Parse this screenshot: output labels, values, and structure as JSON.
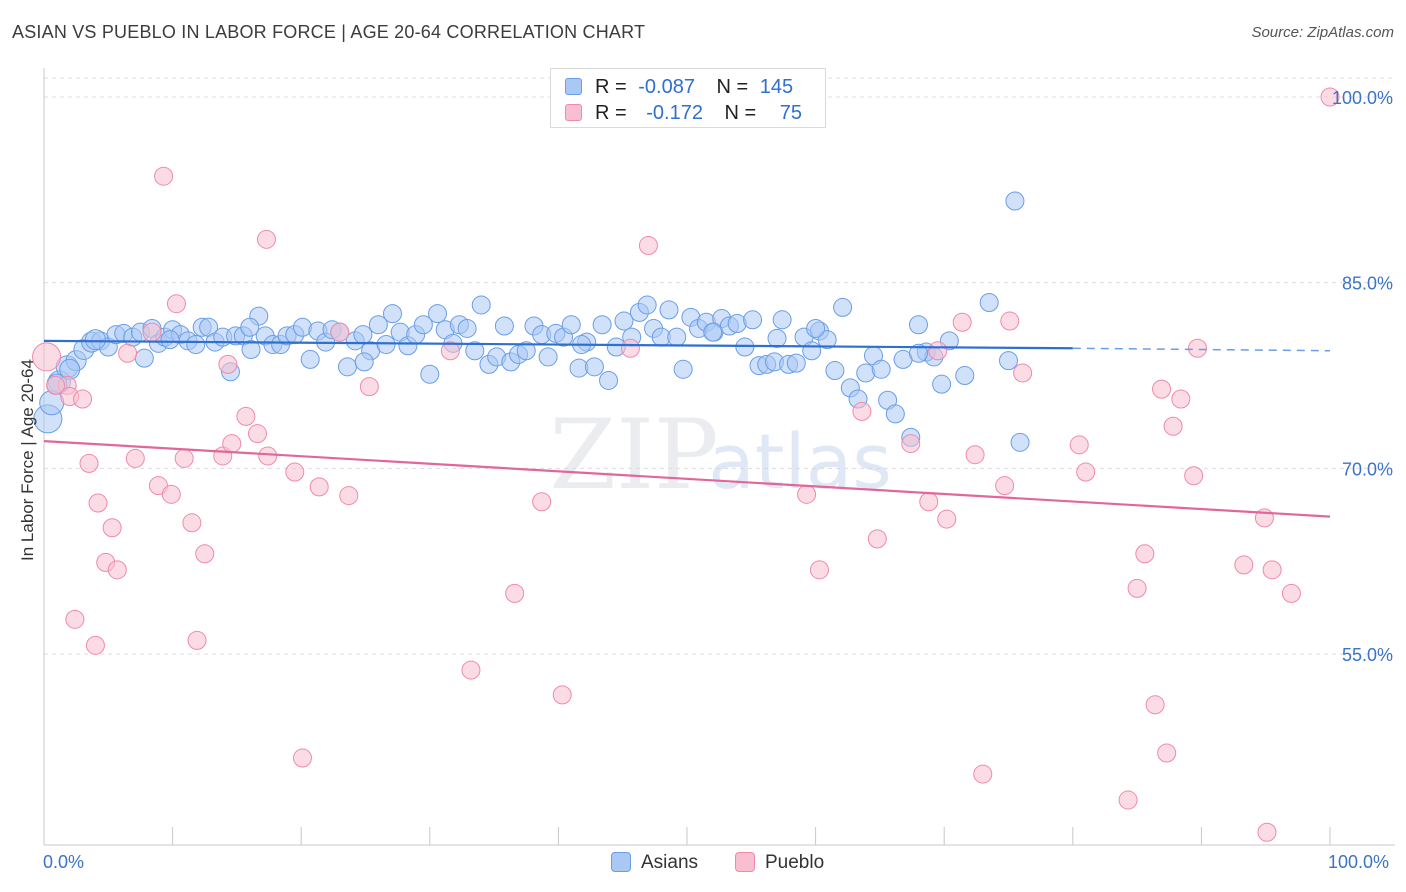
{
  "chart_data": {
    "type": "scatter",
    "title": "ASIAN VS PUEBLO IN LABOR FORCE | AGE 20-64 CORRELATION CHART",
    "source": "Source: ZipAtlas.com",
    "xlabel": "",
    "ylabel": "In Labor Force | Age 20-64",
    "xlim": [
      0,
      100
    ],
    "ylim": [
      40,
      102
    ],
    "x_tick_labels": [
      "0.0%",
      "100.0%"
    ],
    "y_ticks": [
      55,
      70,
      85,
      100
    ],
    "y_tick_labels": [
      "55.0%",
      "70.0%",
      "85.0%",
      "100.0%"
    ],
    "grid": true,
    "watermark": {
      "zip": "ZIP",
      "atlas": "atlas"
    },
    "legend": {
      "r_label": "R =",
      "n_label": "N =",
      "entries": [
        {
          "name": "Asians",
          "r": "-0.087",
          "n": "145"
        },
        {
          "name": "Pueblo",
          "r": "-0.172",
          "n": "75"
        }
      ]
    },
    "series": [
      {
        "name": "Asians",
        "color": "#6a9ee8",
        "fill": "#aac8f4",
        "trend": {
          "x0": 0,
          "y0": 80.3,
          "x1": 80,
          "y1": 79.7,
          "dashed_to": 100,
          "dashed_y": 79.5
        },
        "points": [
          [
            0.3,
            74.0,
            14
          ],
          [
            0.6,
            75.3,
            12
          ],
          [
            1.2,
            77.0,
            11
          ],
          [
            1.8,
            78.2,
            11
          ],
          [
            2.5,
            78.7,
            10
          ],
          [
            3.1,
            79.6,
            10
          ],
          [
            3.7,
            80.2,
            10
          ],
          [
            4.4,
            80.3,
            9
          ],
          [
            5.0,
            79.8,
            9
          ],
          [
            5.6,
            80.8,
            9
          ],
          [
            6.2,
            80.9,
            9
          ],
          [
            6.9,
            80.6,
            9
          ],
          [
            7.5,
            81.0,
            9
          ],
          [
            7.8,
            78.9,
            9
          ],
          [
            8.4,
            81.3,
            9
          ],
          [
            8.9,
            80.1,
            9
          ],
          [
            9.4,
            80.6,
            9
          ],
          [
            10.0,
            81.2,
            9
          ],
          [
            10.6,
            80.8,
            9
          ],
          [
            11.2,
            80.3,
            9
          ],
          [
            11.8,
            80.0,
            9
          ],
          [
            12.3,
            81.4,
            9
          ],
          [
            12.8,
            81.4,
            9
          ],
          [
            13.3,
            80.2,
            9
          ],
          [
            13.9,
            80.6,
            9
          ],
          [
            14.5,
            77.8,
            9
          ],
          [
            14.9,
            80.7,
            9
          ],
          [
            15.5,
            80.7,
            9
          ],
          [
            16.1,
            79.6,
            9
          ],
          [
            16.7,
            82.3,
            9
          ],
          [
            17.2,
            80.7,
            9
          ],
          [
            17.8,
            80.0,
            9
          ],
          [
            18.4,
            80.0,
            9
          ],
          [
            18.9,
            80.7,
            9
          ],
          [
            19.5,
            80.8,
            9
          ],
          [
            20.1,
            81.4,
            9
          ],
          [
            20.7,
            78.8,
            9
          ],
          [
            21.3,
            81.1,
            9
          ],
          [
            21.9,
            80.2,
            9
          ],
          [
            22.4,
            81.2,
            9
          ],
          [
            23.0,
            81.0,
            9
          ],
          [
            23.6,
            78.2,
            9
          ],
          [
            24.2,
            80.3,
            9
          ],
          [
            24.8,
            80.8,
            9
          ],
          [
            25.4,
            79.5,
            9
          ],
          [
            26.0,
            81.6,
            9
          ],
          [
            26.6,
            80.0,
            9
          ],
          [
            27.1,
            82.5,
            9
          ],
          [
            27.7,
            81.0,
            9
          ],
          [
            28.3,
            79.9,
            9
          ],
          [
            28.9,
            80.8,
            9
          ],
          [
            29.5,
            81.6,
            9
          ],
          [
            30.0,
            77.6,
            9
          ],
          [
            30.6,
            82.5,
            9
          ],
          [
            31.2,
            81.2,
            9
          ],
          [
            31.8,
            80.1,
            9
          ],
          [
            32.3,
            81.6,
            9
          ],
          [
            32.9,
            81.3,
            9
          ],
          [
            33.5,
            79.5,
            9
          ],
          [
            34.0,
            83.2,
            9
          ],
          [
            34.6,
            78.4,
            9
          ],
          [
            35.2,
            79.0,
            9
          ],
          [
            35.8,
            81.5,
            9
          ],
          [
            36.3,
            78.6,
            9
          ],
          [
            36.9,
            79.2,
            9
          ],
          [
            37.5,
            79.5,
            9
          ],
          [
            38.1,
            81.5,
            9
          ],
          [
            38.7,
            80.8,
            9
          ],
          [
            39.2,
            79.0,
            9
          ],
          [
            39.8,
            80.9,
            9
          ],
          [
            40.4,
            80.6,
            9
          ],
          [
            41.0,
            81.6,
            9
          ],
          [
            41.6,
            78.1,
            9
          ],
          [
            42.2,
            80.2,
            9
          ],
          [
            42.8,
            78.2,
            9
          ],
          [
            43.4,
            81.6,
            9
          ],
          [
            43.9,
            77.1,
            9
          ],
          [
            44.5,
            79.8,
            9
          ],
          [
            45.1,
            81.9,
            9
          ],
          [
            45.7,
            80.6,
            9
          ],
          [
            46.3,
            82.6,
            9
          ],
          [
            46.9,
            83.2,
            9
          ],
          [
            47.4,
            81.3,
            9
          ],
          [
            48.0,
            80.6,
            9
          ],
          [
            48.6,
            82.8,
            9
          ],
          [
            49.2,
            80.6,
            9
          ],
          [
            49.7,
            78.0,
            9
          ],
          [
            50.3,
            82.2,
            9
          ],
          [
            50.9,
            81.3,
            9
          ],
          [
            51.5,
            81.8,
            9
          ],
          [
            52.1,
            81.0,
            9
          ],
          [
            52.7,
            82.1,
            9
          ],
          [
            53.3,
            81.5,
            9
          ],
          [
            53.9,
            81.7,
            9
          ],
          [
            54.5,
            79.8,
            9
          ],
          [
            55.1,
            82.0,
            9
          ],
          [
            55.6,
            78.3,
            9
          ],
          [
            56.2,
            78.4,
            9
          ],
          [
            56.8,
            78.6,
            9
          ],
          [
            57.4,
            82.0,
            9
          ],
          [
            57.9,
            78.4,
            9
          ],
          [
            58.5,
            78.5,
            9
          ],
          [
            59.1,
            80.6,
            9
          ],
          [
            59.7,
            79.5,
            9
          ],
          [
            60.3,
            81.1,
            9
          ],
          [
            60.9,
            80.4,
            9
          ],
          [
            61.5,
            77.9,
            9
          ],
          [
            62.1,
            83.0,
            9
          ],
          [
            62.7,
            76.5,
            9
          ],
          [
            63.3,
            75.6,
            9
          ],
          [
            63.9,
            77.7,
            9
          ],
          [
            64.5,
            79.1,
            9
          ],
          [
            65.1,
            78.0,
            9
          ],
          [
            65.6,
            75.5,
            9
          ],
          [
            66.2,
            74.4,
            9
          ],
          [
            66.8,
            78.8,
            9
          ],
          [
            67.4,
            72.5,
            9
          ],
          [
            68.0,
            81.6,
            9
          ],
          [
            68.6,
            79.4,
            9
          ],
          [
            69.2,
            79.0,
            9
          ],
          [
            69.8,
            76.8,
            9
          ],
          [
            70.4,
            80.3,
            9
          ],
          [
            71.6,
            77.5,
            9
          ],
          [
            73.5,
            83.4,
            9
          ],
          [
            75.0,
            78.7,
            9
          ],
          [
            75.9,
            72.1,
            9
          ],
          [
            4.0,
            80.4,
            10
          ],
          [
            1.0,
            76.8,
            10
          ],
          [
            2.0,
            78.0,
            10
          ],
          [
            9.8,
            80.4,
            9
          ],
          [
            16.0,
            81.4,
            9
          ],
          [
            24.9,
            78.6,
            9
          ],
          [
            41.8,
            80.0,
            9
          ],
          [
            52.0,
            81.0,
            9
          ],
          [
            60.0,
            81.3,
            9
          ],
          [
            68.0,
            79.3,
            9
          ],
          [
            75.5,
            91.6,
            9
          ],
          [
            57.0,
            80.5,
            9
          ]
        ]
      },
      {
        "name": "Pueblo",
        "color": "#f08aa8",
        "fill": "#f7bfd0",
        "trend": {
          "x0": 0,
          "y0": 72.2,
          "x1": 100,
          "y1": 66.1
        },
        "points": [
          [
            0.2,
            79.0,
            14
          ],
          [
            1.8,
            76.7,
            9
          ],
          [
            2.0,
            75.8,
            9
          ],
          [
            3.0,
            75.6,
            9
          ],
          [
            3.5,
            70.4,
            9
          ],
          [
            4.2,
            67.2,
            9
          ],
          [
            2.4,
            57.8,
            9
          ],
          [
            4.0,
            55.7,
            9
          ],
          [
            5.3,
            65.2,
            9
          ],
          [
            4.8,
            62.4,
            9
          ],
          [
            5.7,
            61.8,
            9
          ],
          [
            6.5,
            79.3,
            9
          ],
          [
            7.1,
            70.8,
            9
          ],
          [
            8.4,
            81.0,
            9
          ],
          [
            8.9,
            68.6,
            9
          ],
          [
            9.3,
            93.6,
            9
          ],
          [
            9.9,
            67.9,
            9
          ],
          [
            10.3,
            83.3,
            9
          ],
          [
            10.9,
            70.8,
            9
          ],
          [
            11.5,
            65.6,
            9
          ],
          [
            11.9,
            56.1,
            9
          ],
          [
            12.5,
            63.1,
            9
          ],
          [
            13.9,
            71.0,
            9
          ],
          [
            14.3,
            78.4,
            9
          ],
          [
            14.6,
            72.0,
            9
          ],
          [
            15.7,
            74.2,
            9
          ],
          [
            16.6,
            72.8,
            9
          ],
          [
            17.4,
            71.0,
            9
          ],
          [
            17.3,
            88.5,
            9
          ],
          [
            19.5,
            69.7,
            9
          ],
          [
            20.1,
            46.6,
            9
          ],
          [
            21.4,
            68.5,
            9
          ],
          [
            23.0,
            81.0,
            9
          ],
          [
            23.7,
            67.8,
            9
          ],
          [
            25.3,
            76.6,
            9
          ],
          [
            31.6,
            79.5,
            9
          ],
          [
            33.2,
            53.7,
            9
          ],
          [
            36.6,
            59.9,
            9
          ],
          [
            38.7,
            67.3,
            9
          ],
          [
            40.3,
            51.7,
            9
          ],
          [
            45.6,
            79.7,
            9
          ],
          [
            47.0,
            88.0,
            9
          ],
          [
            59.3,
            67.9,
            9
          ],
          [
            60.3,
            61.8,
            9
          ],
          [
            63.6,
            74.6,
            9
          ],
          [
            64.8,
            64.3,
            9
          ],
          [
            67.4,
            72.0,
            9
          ],
          [
            68.8,
            67.3,
            9
          ],
          [
            69.5,
            79.5,
            9
          ],
          [
            70.2,
            65.9,
            9
          ],
          [
            71.4,
            81.8,
            9
          ],
          [
            72.4,
            71.1,
            9
          ],
          [
            73.0,
            45.3,
            9
          ],
          [
            74.7,
            68.6,
            9
          ],
          [
            75.1,
            81.9,
            9
          ],
          [
            76.1,
            77.7,
            9
          ],
          [
            80.5,
            71.9,
            9
          ],
          [
            81.0,
            69.7,
            9
          ],
          [
            84.3,
            43.2,
            9
          ],
          [
            85.0,
            60.3,
            9
          ],
          [
            85.6,
            63.1,
            9
          ],
          [
            86.4,
            50.9,
            9
          ],
          [
            87.3,
            47.0,
            9
          ],
          [
            87.8,
            73.4,
            9
          ],
          [
            88.4,
            75.6,
            9
          ],
          [
            89.4,
            69.4,
            9
          ],
          [
            89.7,
            79.7,
            9
          ],
          [
            93.3,
            62.2,
            9
          ],
          [
            95.1,
            40.6,
            9
          ],
          [
            95.5,
            61.8,
            9
          ],
          [
            97.0,
            59.9,
            9
          ],
          [
            100.0,
            100.0,
            9
          ],
          [
            86.9,
            76.4,
            9
          ],
          [
            94.9,
            66.0,
            9
          ],
          [
            0.9,
            76.7,
            9
          ]
        ]
      }
    ]
  }
}
